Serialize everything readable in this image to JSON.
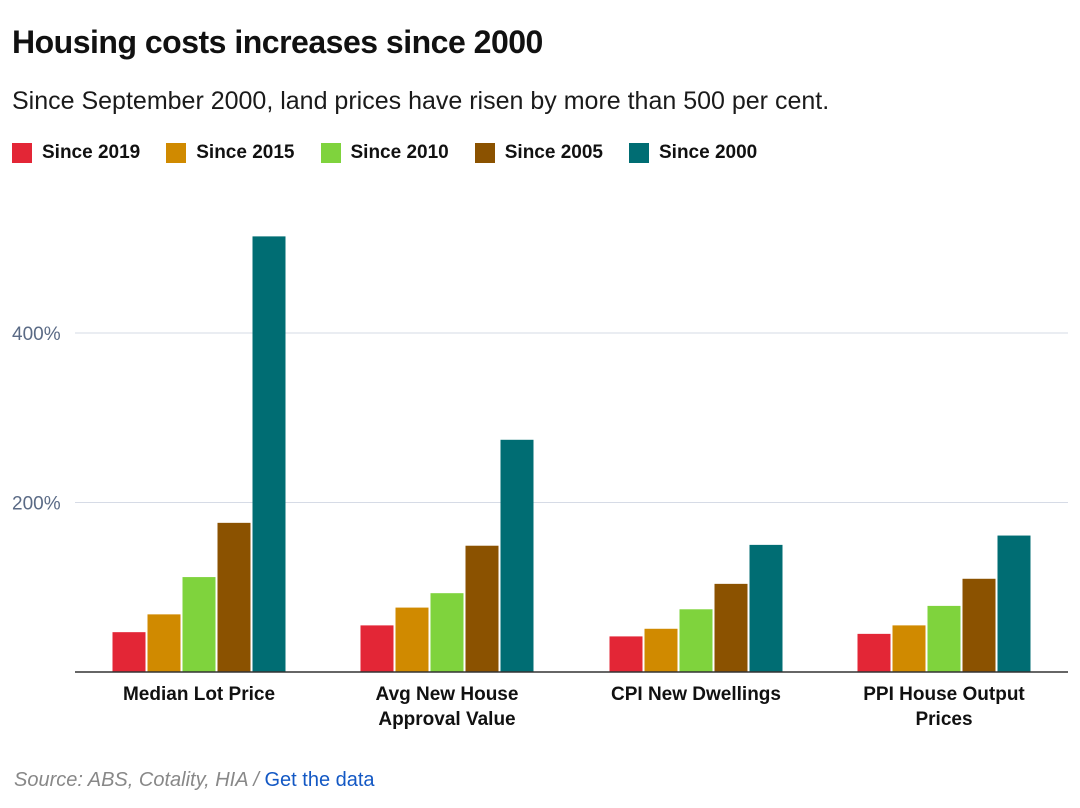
{
  "title": "Housing costs increases since 2000",
  "subtitle": "Since September 2000, land prices have risen by more than 500 per cent.",
  "legend": [
    {
      "label": "Since 2019",
      "color": "#e32636"
    },
    {
      "label": "Since 2015",
      "color": "#d08a00"
    },
    {
      "label": "Since 2010",
      "color": "#7fd33d"
    },
    {
      "label": "Since 2005",
      "color": "#8b5200"
    },
    {
      "label": "Since 2000",
      "color": "#006d73"
    }
  ],
  "source": {
    "text": "Source: ABS, Cotality, HIA",
    "separator": " / ",
    "link_label": "Get the data"
  },
  "chart_data": {
    "type": "bar",
    "categories": [
      [
        "Median Lot Price"
      ],
      [
        "Avg New House",
        "Approval Value"
      ],
      [
        "CPI New Dwellings"
      ],
      [
        "PPI House Output",
        "Prices"
      ]
    ],
    "series": [
      {
        "name": "Since 2019",
        "color": "#e32636",
        "values": [
          47,
          55,
          42,
          45
        ]
      },
      {
        "name": "Since 2015",
        "color": "#d08a00",
        "values": [
          68,
          76,
          51,
          55
        ]
      },
      {
        "name": "Since 2010",
        "color": "#7fd33d",
        "values": [
          112,
          93,
          74,
          78
        ]
      },
      {
        "name": "Since 2005",
        "color": "#8b5200",
        "values": [
          176,
          149,
          104,
          110
        ]
      },
      {
        "name": "Since 2000",
        "color": "#006d73",
        "values": [
          514,
          274,
          150,
          161
        ]
      }
    ],
    "yticks": [
      200,
      400
    ],
    "ytick_labels": [
      "200%",
      "400%"
    ],
    "ylim": [
      0,
      514
    ],
    "grid": true,
    "legend_position": "top-left"
  }
}
